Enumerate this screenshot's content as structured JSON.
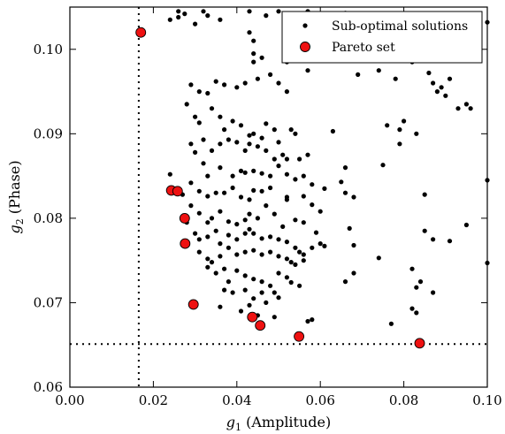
{
  "chart_data": {
    "type": "scatter",
    "title": "",
    "xlabel": {
      "sym": "g",
      "sub": "1",
      "text": " (Amplitude)"
    },
    "ylabel": {
      "sym": "g",
      "sub": "2",
      "text": " (Phase)"
    },
    "xlim": [
      0.0,
      0.1
    ],
    "ylim": [
      0.06,
      0.105
    ],
    "xticks": [
      "0.00",
      "0.02",
      "0.04",
      "0.06",
      "0.08",
      "0.10"
    ],
    "yticks": [
      "0.06",
      "0.07",
      "0.08",
      "0.09",
      "0.10"
    ],
    "xtick_values": [
      0.0,
      0.02,
      0.04,
      0.06,
      0.08,
      0.1
    ],
    "ytick_values": [
      0.06,
      0.07,
      0.08,
      0.09,
      0.1
    ],
    "grid": false,
    "legend_position": "top-right",
    "reference_lines": {
      "vertical_x": 0.0165,
      "horizontal_y": 0.0651,
      "style": "dotted"
    },
    "series": [
      {
        "name": "Sub-optimal solutions",
        "color": "#000000",
        "marker": "small-dot",
        "points": [
          [
            0.026,
            0.1045
          ],
          [
            0.0275,
            0.1042
          ],
          [
            0.032,
            0.1045
          ],
          [
            0.024,
            0.1035
          ],
          [
            0.026,
            0.1038
          ],
          [
            0.03,
            0.103
          ],
          [
            0.033,
            0.104
          ],
          [
            0.036,
            0.1035
          ],
          [
            0.043,
            0.1045
          ],
          [
            0.047,
            0.104
          ],
          [
            0.05,
            0.1045
          ],
          [
            0.057,
            0.1045
          ],
          [
            0.061,
            0.1042
          ],
          [
            0.066,
            0.1043
          ],
          [
            0.1,
            0.1032
          ],
          [
            0.043,
            0.102
          ],
          [
            0.044,
            0.101
          ],
          [
            0.044,
            0.0995
          ],
          [
            0.044,
            0.0985
          ],
          [
            0.046,
            0.099
          ],
          [
            0.048,
            0.097
          ],
          [
            0.052,
            0.0985
          ],
          [
            0.057,
            0.0975
          ],
          [
            0.069,
            0.097
          ],
          [
            0.074,
            0.0975
          ],
          [
            0.078,
            0.0965
          ],
          [
            0.082,
            0.0985
          ],
          [
            0.086,
            0.0972
          ],
          [
            0.087,
            0.096
          ],
          [
            0.088,
            0.095
          ],
          [
            0.089,
            0.0955
          ],
          [
            0.09,
            0.0945
          ],
          [
            0.091,
            0.0965
          ],
          [
            0.093,
            0.093
          ],
          [
            0.095,
            0.0935
          ],
          [
            0.096,
            0.093
          ],
          [
            0.029,
            0.0958
          ],
          [
            0.031,
            0.095
          ],
          [
            0.033,
            0.0948
          ],
          [
            0.035,
            0.0962
          ],
          [
            0.037,
            0.0958
          ],
          [
            0.04,
            0.0955
          ],
          [
            0.042,
            0.096
          ],
          [
            0.045,
            0.0965
          ],
          [
            0.05,
            0.096
          ],
          [
            0.052,
            0.095
          ],
          [
            0.028,
            0.0935
          ],
          [
            0.03,
            0.092
          ],
          [
            0.031,
            0.0913
          ],
          [
            0.034,
            0.093
          ],
          [
            0.036,
            0.092
          ],
          [
            0.037,
            0.0905
          ],
          [
            0.039,
            0.0915
          ],
          [
            0.041,
            0.091
          ],
          [
            0.043,
            0.0898
          ],
          [
            0.044,
            0.09
          ],
          [
            0.046,
            0.0895
          ],
          [
            0.047,
            0.0912
          ],
          [
            0.049,
            0.0905
          ],
          [
            0.05,
            0.089
          ],
          [
            0.053,
            0.0905
          ],
          [
            0.054,
            0.09
          ],
          [
            0.063,
            0.0903
          ],
          [
            0.076,
            0.091
          ],
          [
            0.079,
            0.0905
          ],
          [
            0.08,
            0.0915
          ],
          [
            0.083,
            0.09
          ],
          [
            0.029,
            0.0888
          ],
          [
            0.03,
            0.0878
          ],
          [
            0.032,
            0.0893
          ],
          [
            0.034,
            0.088
          ],
          [
            0.036,
            0.0888
          ],
          [
            0.038,
            0.0893
          ],
          [
            0.04,
            0.089
          ],
          [
            0.042,
            0.088
          ],
          [
            0.043,
            0.0888
          ],
          [
            0.045,
            0.0885
          ],
          [
            0.047,
            0.088
          ],
          [
            0.049,
            0.087
          ],
          [
            0.051,
            0.0875
          ],
          [
            0.052,
            0.087
          ],
          [
            0.055,
            0.087
          ],
          [
            0.057,
            0.0875
          ],
          [
            0.066,
            0.086
          ],
          [
            0.075,
            0.0863
          ],
          [
            0.079,
            0.0888
          ],
          [
            0.032,
            0.0865
          ],
          [
            0.033,
            0.085
          ],
          [
            0.036,
            0.086
          ],
          [
            0.039,
            0.085
          ],
          [
            0.041,
            0.0856
          ],
          [
            0.042,
            0.0854
          ],
          [
            0.044,
            0.0856
          ],
          [
            0.046,
            0.0853
          ],
          [
            0.048,
            0.085
          ],
          [
            0.05,
            0.0862
          ],
          [
            0.052,
            0.0852
          ],
          [
            0.054,
            0.0846
          ],
          [
            0.056,
            0.085
          ],
          [
            0.058,
            0.084
          ],
          [
            0.061,
            0.0835
          ],
          [
            0.065,
            0.0843
          ],
          [
            0.1,
            0.0845
          ],
          [
            0.024,
            0.0852
          ],
          [
            0.029,
            0.0842
          ],
          [
            0.031,
            0.0832
          ],
          [
            0.033,
            0.0826
          ],
          [
            0.035,
            0.083
          ],
          [
            0.037,
            0.083
          ],
          [
            0.039,
            0.0836
          ],
          [
            0.041,
            0.0825
          ],
          [
            0.043,
            0.0822
          ],
          [
            0.044,
            0.0833
          ],
          [
            0.046,
            0.0832
          ],
          [
            0.048,
            0.0836
          ],
          [
            0.052,
            0.0825
          ],
          [
            0.052,
            0.0822
          ],
          [
            0.056,
            0.0826
          ],
          [
            0.058,
            0.0816
          ],
          [
            0.06,
            0.0808
          ],
          [
            0.066,
            0.083
          ],
          [
            0.068,
            0.0825
          ],
          [
            0.027,
            0.0828
          ],
          [
            0.029,
            0.0815
          ],
          [
            0.031,
            0.0806
          ],
          [
            0.033,
            0.0795
          ],
          [
            0.034,
            0.08
          ],
          [
            0.036,
            0.0808
          ],
          [
            0.038,
            0.0796
          ],
          [
            0.04,
            0.0793
          ],
          [
            0.042,
            0.0798
          ],
          [
            0.043,
            0.0805
          ],
          [
            0.045,
            0.08
          ],
          [
            0.047,
            0.0815
          ],
          [
            0.049,
            0.0805
          ],
          [
            0.051,
            0.079
          ],
          [
            0.054,
            0.0798
          ],
          [
            0.056,
            0.0795
          ],
          [
            0.059,
            0.0783
          ],
          [
            0.067,
            0.0788
          ],
          [
            0.085,
            0.0828
          ],
          [
            0.085,
            0.0785
          ],
          [
            0.095,
            0.0792
          ],
          [
            0.028,
            0.0795
          ],
          [
            0.03,
            0.0782
          ],
          [
            0.031,
            0.0775
          ],
          [
            0.033,
            0.0778
          ],
          [
            0.035,
            0.0785
          ],
          [
            0.036,
            0.077
          ],
          [
            0.038,
            0.078
          ],
          [
            0.04,
            0.0775
          ],
          [
            0.042,
            0.0782
          ],
          [
            0.043,
            0.0787
          ],
          [
            0.044,
            0.0782
          ],
          [
            0.046,
            0.0776
          ],
          [
            0.048,
            0.0778
          ],
          [
            0.05,
            0.0775
          ],
          [
            0.052,
            0.0772
          ],
          [
            0.054,
            0.0765
          ],
          [
            0.055,
            0.076
          ],
          [
            0.056,
            0.0757
          ],
          [
            0.058,
            0.0765
          ],
          [
            0.06,
            0.077
          ],
          [
            0.061,
            0.0767
          ],
          [
            0.068,
            0.0768
          ],
          [
            0.087,
            0.0775
          ],
          [
            0.091,
            0.0773
          ],
          [
            0.031,
            0.076
          ],
          [
            0.033,
            0.0752
          ],
          [
            0.034,
            0.0748
          ],
          [
            0.036,
            0.0755
          ],
          [
            0.038,
            0.0765
          ],
          [
            0.04,
            0.0757
          ],
          [
            0.042,
            0.076
          ],
          [
            0.044,
            0.0762
          ],
          [
            0.046,
            0.0757
          ],
          [
            0.048,
            0.076
          ],
          [
            0.05,
            0.0755
          ],
          [
            0.052,
            0.0752
          ],
          [
            0.053,
            0.0748
          ],
          [
            0.054,
            0.0745
          ],
          [
            0.056,
            0.075
          ],
          [
            0.074,
            0.0753
          ],
          [
            0.082,
            0.074
          ],
          [
            0.1,
            0.0747
          ],
          [
            0.033,
            0.0742
          ],
          [
            0.035,
            0.0735
          ],
          [
            0.037,
            0.074
          ],
          [
            0.038,
            0.0725
          ],
          [
            0.04,
            0.0738
          ],
          [
            0.042,
            0.0732
          ],
          [
            0.044,
            0.0728
          ],
          [
            0.046,
            0.0725
          ],
          [
            0.048,
            0.072
          ],
          [
            0.05,
            0.0735
          ],
          [
            0.052,
            0.073
          ],
          [
            0.053,
            0.0724
          ],
          [
            0.055,
            0.072
          ],
          [
            0.066,
            0.0725
          ],
          [
            0.068,
            0.0735
          ],
          [
            0.084,
            0.0725
          ],
          [
            0.083,
            0.0718
          ],
          [
            0.037,
            0.0715
          ],
          [
            0.039,
            0.0712
          ],
          [
            0.042,
            0.0715
          ],
          [
            0.044,
            0.0705
          ],
          [
            0.046,
            0.0712
          ],
          [
            0.049,
            0.0712
          ],
          [
            0.05,
            0.0706
          ],
          [
            0.057,
            0.0678
          ],
          [
            0.058,
            0.068
          ],
          [
            0.077,
            0.0675
          ],
          [
            0.082,
            0.0693
          ],
          [
            0.083,
            0.0688
          ],
          [
            0.087,
            0.0712
          ],
          [
            0.036,
            0.0695
          ],
          [
            0.041,
            0.069
          ],
          [
            0.043,
            0.0697
          ],
          [
            0.045,
            0.0685
          ],
          [
            0.047,
            0.07
          ],
          [
            0.049,
            0.0683
          ]
        ]
      },
      {
        "name": "Pareto set",
        "color": "#ee1111",
        "marker": "large-circle",
        "points": [
          [
            0.017,
            0.102
          ],
          [
            0.0243,
            0.0833
          ],
          [
            0.0258,
            0.0832
          ],
          [
            0.0275,
            0.08
          ],
          [
            0.0276,
            0.077
          ],
          [
            0.0296,
            0.0698
          ],
          [
            0.0437,
            0.0683
          ],
          [
            0.0456,
            0.0673
          ],
          [
            0.0549,
            0.066
          ],
          [
            0.0838,
            0.0652
          ]
        ]
      }
    ]
  }
}
